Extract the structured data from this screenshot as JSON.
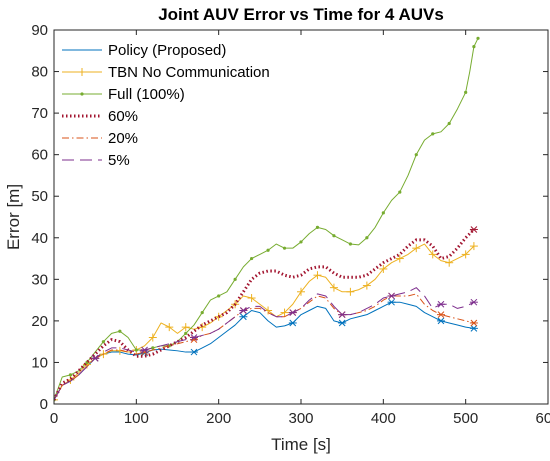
{
  "chart_data": {
    "type": "line",
    "title": "Joint AUV Error vs Time for 4 AUVs",
    "xlabel": "Time [s]",
    "ylabel": "Error [m]",
    "xlim": [
      0,
      600
    ],
    "ylim": [
      0,
      90
    ],
    "xticks": [
      "0",
      "100",
      "200",
      "300",
      "400",
      "500",
      "600"
    ],
    "yticks": [
      "0",
      "10",
      "20",
      "30",
      "40",
      "50",
      "60",
      "70",
      "80",
      "90"
    ],
    "grid": false,
    "legend": "top-left",
    "series": [
      {
        "name": "Policy (Proposed)",
        "color": "#0072BD",
        "dash": "solid",
        "points": [
          [
            0,
            1
          ],
          [
            10,
            4.5
          ],
          [
            20,
            5.5
          ],
          [
            30,
            7
          ],
          [
            40,
            9
          ],
          [
            50,
            11
          ],
          [
            60,
            12
          ],
          [
            70,
            12.5
          ],
          [
            80,
            12.5
          ],
          [
            90,
            12
          ],
          [
            100,
            11.8
          ],
          [
            110,
            12.3
          ],
          [
            120,
            13
          ],
          [
            130,
            13.2
          ],
          [
            140,
            13
          ],
          [
            150,
            12.8
          ],
          [
            160,
            12.5
          ],
          [
            170,
            12.5
          ],
          [
            180,
            13.5
          ],
          [
            190,
            14.5
          ],
          [
            200,
            16
          ],
          [
            210,
            17.5
          ],
          [
            220,
            19
          ],
          [
            230,
            21
          ],
          [
            240,
            22.5
          ],
          [
            250,
            22
          ],
          [
            260,
            20
          ],
          [
            270,
            18.5
          ],
          [
            280,
            18.8
          ],
          [
            290,
            19.5
          ],
          [
            300,
            21.5
          ],
          [
            310,
            22.5
          ],
          [
            320,
            23.5
          ],
          [
            330,
            23
          ],
          [
            340,
            20
          ],
          [
            350,
            19.5
          ],
          [
            360,
            20.5
          ],
          [
            370,
            21
          ],
          [
            380,
            21.5
          ],
          [
            390,
            22.5
          ],
          [
            400,
            23.5
          ],
          [
            410,
            24.5
          ],
          [
            420,
            24.5
          ],
          [
            430,
            24
          ],
          [
            440,
            23.5
          ],
          [
            450,
            22
          ],
          [
            460,
            21
          ],
          [
            470,
            20
          ],
          [
            480,
            19.5
          ],
          [
            490,
            19
          ],
          [
            500,
            18.5
          ],
          [
            510,
            18.2
          ]
        ]
      },
      {
        "name": "TBN No Communication",
        "color": "#EDB120",
        "dash": "solid",
        "points": [
          [
            0,
            1
          ],
          [
            10,
            4.5
          ],
          [
            20,
            5.8
          ],
          [
            30,
            7.5
          ],
          [
            40,
            9.5
          ],
          [
            50,
            11
          ],
          [
            60,
            12
          ],
          [
            70,
            12.8
          ],
          [
            80,
            12.8
          ],
          [
            90,
            12.5
          ],
          [
            100,
            13
          ],
          [
            110,
            14
          ],
          [
            120,
            16
          ],
          [
            130,
            19.5
          ],
          [
            140,
            18.5
          ],
          [
            150,
            17
          ],
          [
            160,
            18.5
          ],
          [
            170,
            18
          ],
          [
            180,
            18.5
          ],
          [
            190,
            19.5
          ],
          [
            200,
            21
          ],
          [
            210,
            22.5
          ],
          [
            220,
            24
          ],
          [
            230,
            26
          ],
          [
            240,
            25.5
          ],
          [
            250,
            24
          ],
          [
            260,
            22.5
          ],
          [
            270,
            21
          ],
          [
            280,
            22
          ],
          [
            290,
            24
          ],
          [
            300,
            27
          ],
          [
            310,
            29.5
          ],
          [
            320,
            31
          ],
          [
            330,
            30.5
          ],
          [
            340,
            28
          ],
          [
            350,
            27
          ],
          [
            360,
            27
          ],
          [
            370,
            27.5
          ],
          [
            380,
            28.5
          ],
          [
            390,
            30
          ],
          [
            400,
            32.5
          ],
          [
            410,
            34
          ],
          [
            420,
            35
          ],
          [
            430,
            36
          ],
          [
            440,
            37.5
          ],
          [
            450,
            38.5
          ],
          [
            460,
            36
          ],
          [
            470,
            34.5
          ],
          [
            480,
            34
          ],
          [
            490,
            35
          ],
          [
            500,
            36
          ],
          [
            510,
            38
          ]
        ]
      },
      {
        "name": "Full (100%)",
        "color": "#77AC30",
        "dash": "solid",
        "points": [
          [
            0,
            1
          ],
          [
            10,
            6.5
          ],
          [
            20,
            7
          ],
          [
            30,
            8
          ],
          [
            40,
            10
          ],
          [
            50,
            12.5
          ],
          [
            60,
            15
          ],
          [
            70,
            17
          ],
          [
            80,
            17.5
          ],
          [
            90,
            16
          ],
          [
            100,
            13
          ],
          [
            110,
            13
          ],
          [
            120,
            13.5
          ],
          [
            130,
            14
          ],
          [
            140,
            14
          ],
          [
            150,
            15
          ],
          [
            160,
            17
          ],
          [
            170,
            19
          ],
          [
            180,
            22
          ],
          [
            190,
            25
          ],
          [
            200,
            26
          ],
          [
            210,
            27
          ],
          [
            220,
            30
          ],
          [
            230,
            33
          ],
          [
            240,
            35
          ],
          [
            250,
            36
          ],
          [
            260,
            37
          ],
          [
            270,
            38.5
          ],
          [
            280,
            37.5
          ],
          [
            290,
            37.5
          ],
          [
            300,
            39
          ],
          [
            310,
            41
          ],
          [
            320,
            42.5
          ],
          [
            330,
            42
          ],
          [
            340,
            40.5
          ],
          [
            350,
            39.5
          ],
          [
            360,
            38.5
          ],
          [
            370,
            38.3
          ],
          [
            380,
            40
          ],
          [
            390,
            42.5
          ],
          [
            400,
            46
          ],
          [
            410,
            49
          ],
          [
            420,
            51
          ],
          [
            430,
            55
          ],
          [
            440,
            60
          ],
          [
            450,
            63.5
          ],
          [
            460,
            65
          ],
          [
            470,
            65.5
          ],
          [
            480,
            67.5
          ],
          [
            490,
            71
          ],
          [
            500,
            75
          ],
          [
            505,
            80
          ],
          [
            510,
            86
          ],
          [
            515,
            88
          ]
        ]
      },
      {
        "name": "60%",
        "color": "#A2142F",
        "dash": "dotted",
        "points": [
          [
            0,
            1
          ],
          [
            10,
            5
          ],
          [
            20,
            6
          ],
          [
            30,
            8
          ],
          [
            40,
            10
          ],
          [
            50,
            12
          ],
          [
            60,
            14
          ],
          [
            70,
            15.5
          ],
          [
            80,
            15
          ],
          [
            90,
            13
          ],
          [
            100,
            11.5
          ],
          [
            110,
            11.5
          ],
          [
            120,
            12
          ],
          [
            130,
            13
          ],
          [
            140,
            14
          ],
          [
            150,
            15
          ],
          [
            160,
            16
          ],
          [
            170,
            17.5
          ],
          [
            180,
            19
          ],
          [
            190,
            20
          ],
          [
            200,
            21
          ],
          [
            210,
            22
          ],
          [
            220,
            24
          ],
          [
            230,
            27
          ],
          [
            240,
            30
          ],
          [
            250,
            31.5
          ],
          [
            260,
            32
          ],
          [
            270,
            32
          ],
          [
            280,
            31
          ],
          [
            290,
            30.5
          ],
          [
            300,
            31
          ],
          [
            310,
            32.5
          ],
          [
            320,
            33
          ],
          [
            330,
            33
          ],
          [
            340,
            31.5
          ],
          [
            350,
            30.5
          ],
          [
            360,
            30.5
          ],
          [
            370,
            30.5
          ],
          [
            380,
            31
          ],
          [
            390,
            32.5
          ],
          [
            400,
            34
          ],
          [
            410,
            35
          ],
          [
            420,
            36
          ],
          [
            430,
            38
          ],
          [
            440,
            39.5
          ],
          [
            450,
            39.5
          ],
          [
            460,
            38
          ],
          [
            470,
            35
          ],
          [
            480,
            35.5
          ],
          [
            490,
            37.5
          ],
          [
            500,
            40
          ],
          [
            510,
            42
          ]
        ]
      },
      {
        "name": "20%",
        "color": "#D95319",
        "dash": "dashdot",
        "points": [
          [
            0,
            1
          ],
          [
            10,
            4.5
          ],
          [
            20,
            5.5
          ],
          [
            30,
            7
          ],
          [
            40,
            9
          ],
          [
            50,
            11
          ],
          [
            60,
            12
          ],
          [
            70,
            13
          ],
          [
            80,
            13
          ],
          [
            90,
            12.5
          ],
          [
            100,
            12
          ],
          [
            110,
            12.5
          ],
          [
            120,
            13
          ],
          [
            130,
            13.5
          ],
          [
            140,
            14
          ],
          [
            150,
            14.5
          ],
          [
            160,
            15
          ],
          [
            170,
            15.5
          ],
          [
            180,
            16.5
          ],
          [
            190,
            17
          ],
          [
            200,
            18
          ],
          [
            210,
            19.5
          ],
          [
            220,
            21
          ],
          [
            230,
            22.5
          ],
          [
            240,
            23
          ],
          [
            250,
            23
          ],
          [
            260,
            22
          ],
          [
            270,
            21
          ],
          [
            280,
            21
          ],
          [
            290,
            22
          ],
          [
            300,
            23
          ],
          [
            310,
            24.5
          ],
          [
            320,
            26
          ],
          [
            330,
            25.5
          ],
          [
            340,
            23
          ],
          [
            350,
            21.5
          ],
          [
            360,
            21.5
          ],
          [
            370,
            22
          ],
          [
            380,
            22.5
          ],
          [
            390,
            23.5
          ],
          [
            400,
            25
          ],
          [
            410,
            26
          ],
          [
            420,
            26
          ],
          [
            430,
            26
          ],
          [
            440,
            26.5
          ],
          [
            450,
            24
          ],
          [
            460,
            22.5
          ],
          [
            470,
            21.5
          ],
          [
            480,
            21
          ],
          [
            490,
            20.5
          ],
          [
            500,
            20
          ],
          [
            510,
            19.5
          ]
        ]
      },
      {
        "name": "5%",
        "color": "#7E2F8E",
        "dash": "longdash",
        "points": [
          [
            0,
            1
          ],
          [
            10,
            4.5
          ],
          [
            20,
            5.5
          ],
          [
            30,
            7
          ],
          [
            40,
            9
          ],
          [
            50,
            11
          ],
          [
            60,
            12.5
          ],
          [
            70,
            13.5
          ],
          [
            80,
            13.5
          ],
          [
            90,
            13
          ],
          [
            100,
            12.5
          ],
          [
            110,
            13
          ],
          [
            120,
            13.5
          ],
          [
            130,
            14
          ],
          [
            140,
            14.5
          ],
          [
            150,
            15
          ],
          [
            160,
            15.5
          ],
          [
            170,
            16
          ],
          [
            180,
            16.5
          ],
          [
            190,
            17
          ],
          [
            200,
            18
          ],
          [
            210,
            19.5
          ],
          [
            220,
            21
          ],
          [
            230,
            22.5
          ],
          [
            240,
            23.5
          ],
          [
            250,
            23.5
          ],
          [
            260,
            22
          ],
          [
            270,
            21
          ],
          [
            280,
            21
          ],
          [
            290,
            22
          ],
          [
            300,
            23
          ],
          [
            310,
            25
          ],
          [
            320,
            26.5
          ],
          [
            330,
            26
          ],
          [
            340,
            23.5
          ],
          [
            350,
            21.5
          ],
          [
            360,
            21.5
          ],
          [
            370,
            22
          ],
          [
            380,
            23
          ],
          [
            390,
            24
          ],
          [
            400,
            25.5
          ],
          [
            410,
            26
          ],
          [
            420,
            26.5
          ],
          [
            430,
            27
          ],
          [
            440,
            28
          ],
          [
            450,
            26
          ],
          [
            460,
            23
          ],
          [
            470,
            24
          ],
          [
            480,
            24
          ],
          [
            490,
            23
          ],
          [
            500,
            23.5
          ],
          [
            510,
            24.5
          ]
        ]
      }
    ]
  }
}
